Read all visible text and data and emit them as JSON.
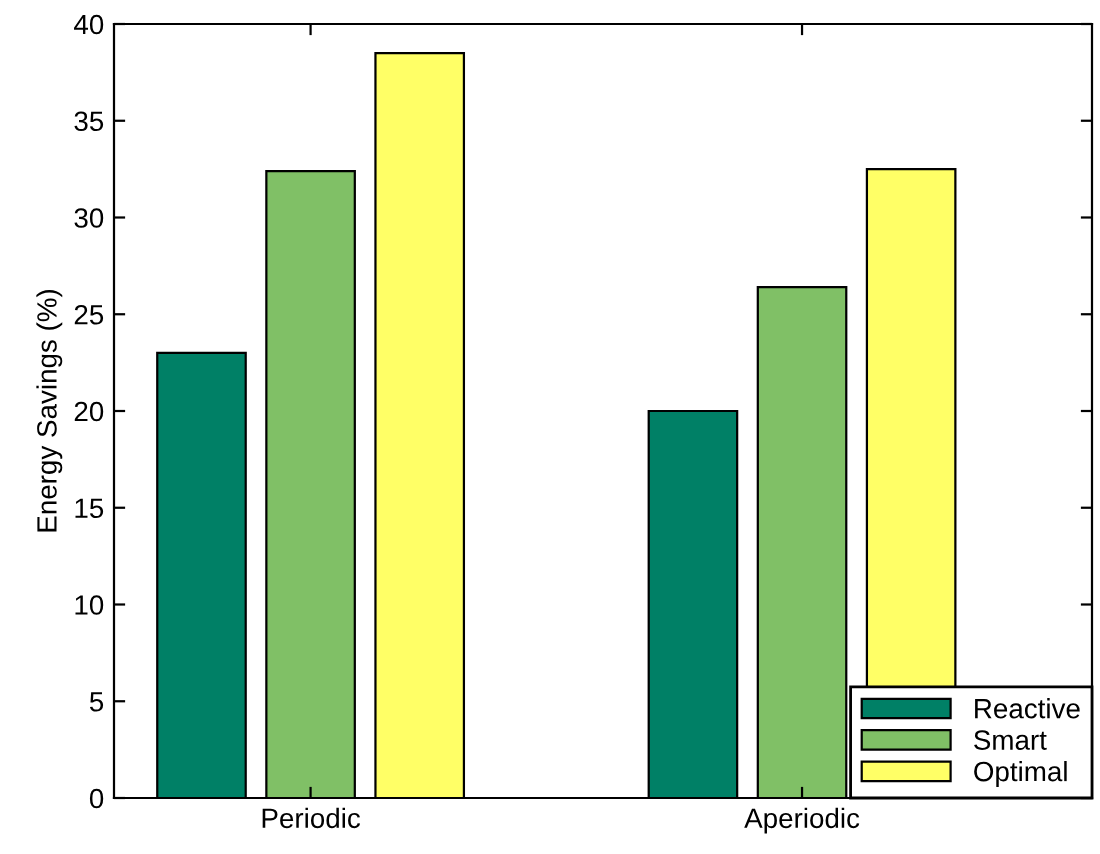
{
  "chart_data": {
    "type": "bar",
    "ylabel": "Energy Savings (%)",
    "categories": [
      "Periodic",
      "Aperiodic"
    ],
    "series": [
      {
        "name": "Reactive",
        "color": "#008066",
        "values": [
          23.0,
          20.0
        ]
      },
      {
        "name": "Smart",
        "color": "#80c066",
        "values": [
          32.4,
          26.4
        ]
      },
      {
        "name": "Optimal",
        "color": "#ffff66",
        "values": [
          38.5,
          32.5
        ]
      }
    ],
    "ylim": [
      0,
      40
    ],
    "yticks": [
      0,
      5,
      10,
      15,
      20,
      25,
      30,
      35,
      40
    ],
    "grid": false,
    "legend": "bottom right"
  }
}
